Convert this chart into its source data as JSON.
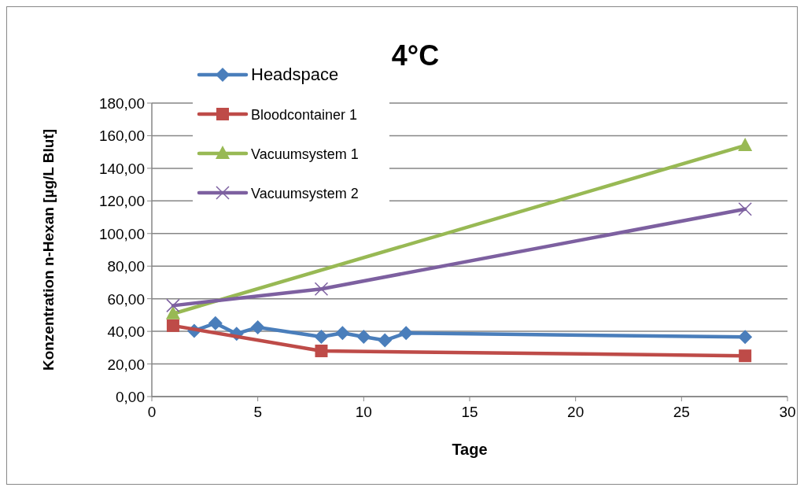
{
  "chart_data": {
    "type": "line",
    "title": "4°C",
    "xlabel": "Tage",
    "ylabel": "Konzentration n-Hexan [µg/L Blut]",
    "xlim": [
      0,
      30
    ],
    "xticks": [
      0,
      5,
      10,
      15,
      20,
      25,
      30
    ],
    "ylim": [
      0,
      180
    ],
    "yticks": [
      {
        "value": 0,
        "label": "0,00"
      },
      {
        "value": 20,
        "label": "20,00"
      },
      {
        "value": 40,
        "label": "40,00"
      },
      {
        "value": 60,
        "label": "60,00"
      },
      {
        "value": 80,
        "label": "80,00"
      },
      {
        "value": 100,
        "label": "100,00"
      },
      {
        "value": 120,
        "label": "120,00"
      },
      {
        "value": 140,
        "label": "140,00"
      },
      {
        "value": 160,
        "label": "160,00"
      },
      {
        "value": 180,
        "label": "180,00"
      }
    ],
    "grid": "y",
    "legend": "top left",
    "series": [
      {
        "name": "Headspace",
        "color": "#4a7ebb",
        "marker": "diamond",
        "x": [
          2,
          3,
          4,
          5,
          8,
          9,
          10,
          11,
          12,
          28
        ],
        "values": [
          40.3,
          45,
          38.5,
          42.5,
          36.7,
          39,
          36.7,
          34.5,
          39,
          36.5
        ]
      },
      {
        "name": "Bloodcontainer 1",
        "color": "#be4b48",
        "marker": "square",
        "x": [
          1,
          8,
          28
        ],
        "values": [
          43.5,
          28,
          25
        ]
      },
      {
        "name": "Vacuumsystem 1",
        "color": "#98b954",
        "marker": "triangle",
        "x": [
          1,
          28
        ],
        "values": [
          50.8,
          154
        ]
      },
      {
        "name": "Vacuumsystem 2",
        "color": "#7d60a0",
        "marker": "cross",
        "x": [
          1,
          8,
          28
        ],
        "values": [
          55.8,
          66,
          115
        ]
      }
    ]
  }
}
